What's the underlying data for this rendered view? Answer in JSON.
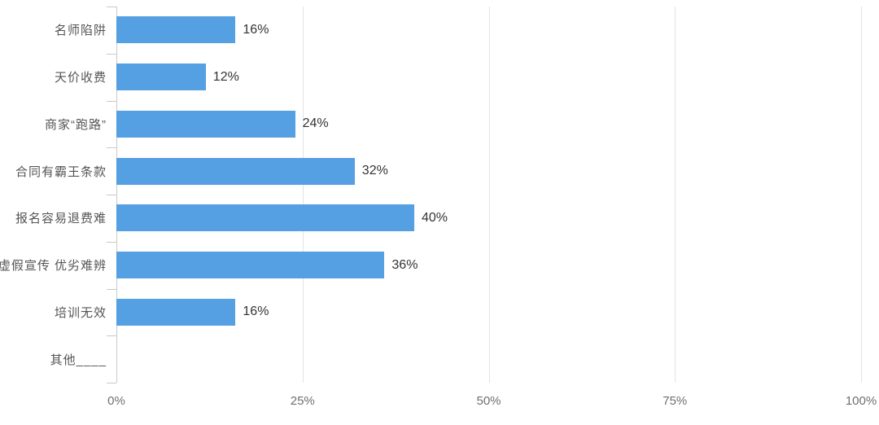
{
  "chart_data": {
    "type": "bar",
    "orientation": "horizontal",
    "title": "",
    "xlabel": "",
    "ylabel": "",
    "categories": [
      "名师陷阱",
      "天价收费",
      "商家“跑路”",
      "合同有霸王条款",
      "报名容易退费难",
      "虚假宣传 优劣难辨",
      "培训无效",
      "其他____"
    ],
    "values": [
      16,
      12,
      24,
      32,
      40,
      36,
      16,
      0
    ],
    "value_labels": [
      "16%",
      "12%",
      "24%",
      "32%",
      "40%",
      "36%",
      "16%",
      ""
    ],
    "x_tick_labels": [
      "0%",
      "25%",
      "50%",
      "75%",
      "100%"
    ],
    "x_tick_values": [
      0,
      25,
      50,
      75,
      100
    ],
    "xlim": [
      0,
      100
    ],
    "grid": true,
    "legend": false,
    "colors": {
      "bar": "#55a0e2",
      "gridline": "#e3e3e3",
      "axis": "#c9c9c9",
      "category_label": "#555555",
      "value_label": "#333333",
      "tick_label": "#6f6f6f",
      "background": "#ffffff"
    }
  }
}
